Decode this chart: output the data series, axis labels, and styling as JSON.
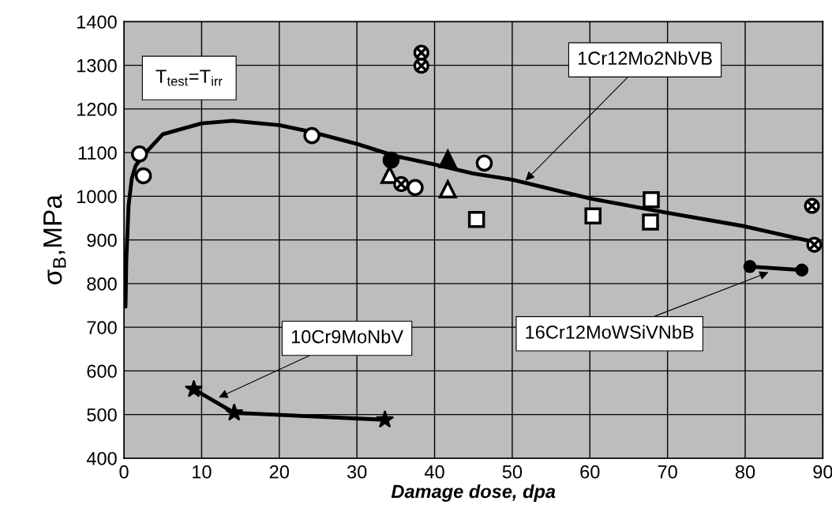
{
  "chart_data": {
    "type": "scatter",
    "xlabel": "Damage dose, dpa",
    "ylabel": "σ$_{B}$,MPa",
    "xlim": [
      0,
      90
    ],
    "xticks": [
      0,
      10,
      20,
      30,
      40,
      50,
      60,
      70,
      80,
      90
    ],
    "ylim": [
      400,
      1400
    ],
    "yticks": [
      400,
      500,
      600,
      700,
      800,
      900,
      1000,
      1100,
      1200,
      1300,
      1400
    ],
    "grid": true,
    "legend": false,
    "series": [
      {
        "type": "line",
        "marker": "none",
        "color": "#000000",
        "x": [
          0.2,
          0.3,
          0.6,
          1,
          1.5,
          2.5,
          5,
          10,
          14,
          20,
          24,
          30,
          35,
          40,
          45,
          50,
          60,
          70,
          80,
          89.5
        ],
        "values": [
          747,
          853,
          980,
          1040,
          1070,
          1094,
          1142,
          1167,
          1173,
          1163,
          1148,
          1120,
          1092,
          1073,
          1052,
          1038,
          995,
          962,
          931,
          893
        ]
      },
      {
        "type": "line",
        "marker": "star",
        "color": "#000000",
        "x": [
          9.0,
          14.2,
          33.6
        ],
        "values": [
          558,
          504,
          488
        ]
      },
      {
        "type": "line",
        "marker": "circle",
        "color": "#000000",
        "x": [
          80.6,
          87.3
        ],
        "values": [
          839,
          831
        ]
      },
      {
        "marker": "circle",
        "color": "#ffffff",
        "x": [
          2.0,
          2.5,
          24.2,
          37.5,
          46.4
        ],
        "values": [
          1097,
          1047,
          1139,
          1020,
          1076
        ]
      },
      {
        "marker": "circle",
        "color": "#000000",
        "x": [
          34.4
        ],
        "values": [
          1083
        ]
      },
      {
        "marker": "triangle",
        "color": "#ffffff",
        "x": [
          34.2,
          41.7
        ],
        "values": [
          1049,
          1016
        ]
      },
      {
        "marker": "triangle",
        "color": "#000000",
        "x": [
          41.7
        ],
        "values": [
          1085
        ]
      },
      {
        "marker": "square",
        "color": "#ffffff",
        "x": [
          45.4,
          60.4,
          67.9,
          67.8
        ],
        "values": [
          947,
          955,
          992,
          941
        ]
      },
      {
        "marker": "cross",
        "color": "#ffffff",
        "x": [
          35.7,
          38.3,
          38.3,
          88.6,
          88.9
        ],
        "values": [
          1028,
          1329,
          1299,
          978,
          889
        ]
      }
    ],
    "annotations": [
      "T$_{test}$=T$_{irr}$",
      {
        "text": "1Cr12Mo2NbVB",
        "x": 51.7,
        "y": 1036
      },
      {
        "text": "10Cr9MoNbV",
        "x": 12.2,
        "y": 539
      },
      {
        "text": "16Cr12MoWSiVNbB",
        "x": 83.0,
        "y": 826
      }
    ]
  }
}
